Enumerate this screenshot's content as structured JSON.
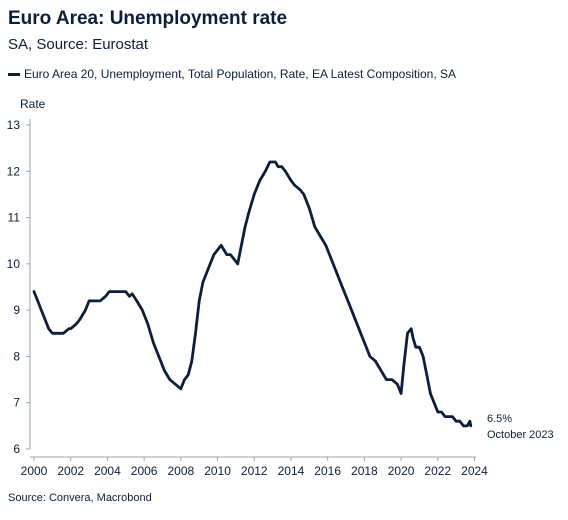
{
  "header": {
    "title": "Euro Area: Unemployment rate",
    "subtitle": "SA, Source: Eurostat"
  },
  "legend": {
    "label": "Euro Area 20, Unemployment, Total Population, Rate, EA Latest Composition, SA"
  },
  "footer": {
    "source": "Source: Convera, Macrobond"
  },
  "annotation": {
    "value": "6.5%",
    "date": "October 2023"
  },
  "chart_data": {
    "type": "line",
    "ylabel": "Rate",
    "xlabel": "",
    "ylim": [
      6,
      13
    ],
    "xlim": [
      2000,
      2024.3
    ],
    "yticks": [
      "6",
      "7",
      "8",
      "9",
      "10",
      "11",
      "12",
      "13"
    ],
    "xticks": [
      "2000",
      "2002",
      "2004",
      "2006",
      "2008",
      "2010",
      "2012",
      "2014",
      "2016",
      "2018",
      "2020",
      "2022",
      "2024"
    ],
    "line_color": "#0b1f3a",
    "series": [
      {
        "name": "Euro Area 20, Unemployment, Total Population, Rate, EA Latest Composition, SA",
        "x": [
          2000.0,
          2000.2,
          2000.4,
          2000.6,
          2000.8,
          2001.0,
          2001.3,
          2001.6,
          2001.9,
          2002.0,
          2002.3,
          2002.5,
          2002.8,
          2003.0,
          2003.3,
          2003.6,
          2003.9,
          2004.1,
          2004.4,
          2004.7,
          2005.0,
          2005.2,
          2005.35,
          2005.6,
          2005.9,
          2006.2,
          2006.5,
          2006.8,
          2007.1,
          2007.4,
          2007.7,
          2008.0,
          2008.2,
          2008.4,
          2008.6,
          2008.8,
          2009.0,
          2009.2,
          2009.4,
          2009.6,
          2009.8,
          2010.0,
          2010.2,
          2010.35,
          2010.5,
          2010.7,
          2010.9,
          2011.1,
          2011.3,
          2011.5,
          2011.7,
          2012.0,
          2012.3,
          2012.6,
          2012.85,
          2013.0,
          2013.15,
          2013.3,
          2013.5,
          2013.7,
          2014.0,
          2014.2,
          2014.5,
          2014.7,
          2015.0,
          2015.3,
          2015.6,
          2015.9,
          2016.2,
          2016.5,
          2016.8,
          2017.1,
          2017.4,
          2017.7,
          2018.0,
          2018.3,
          2018.6,
          2018.9,
          2019.2,
          2019.5,
          2019.8,
          2020.0,
          2020.15,
          2020.35,
          2020.55,
          2020.65,
          2020.8,
          2021.0,
          2021.2,
          2021.4,
          2021.6,
          2021.8,
          2022.0,
          2022.2,
          2022.4,
          2022.6,
          2022.8,
          2023.0,
          2023.2,
          2023.4,
          2023.6,
          2023.75,
          2023.8
        ],
        "values": [
          9.4,
          9.2,
          9.0,
          8.8,
          8.6,
          8.5,
          8.5,
          8.5,
          8.6,
          8.6,
          8.7,
          8.8,
          9.0,
          9.2,
          9.2,
          9.2,
          9.3,
          9.4,
          9.4,
          9.4,
          9.4,
          9.3,
          9.35,
          9.2,
          9.0,
          8.7,
          8.3,
          8.0,
          7.7,
          7.5,
          7.4,
          7.3,
          7.5,
          7.6,
          7.9,
          8.5,
          9.2,
          9.6,
          9.8,
          10.0,
          10.2,
          10.3,
          10.4,
          10.3,
          10.2,
          10.2,
          10.1,
          10.0,
          10.4,
          10.8,
          11.1,
          11.5,
          11.8,
          12.0,
          12.2,
          12.2,
          12.2,
          12.1,
          12.1,
          12.0,
          11.8,
          11.7,
          11.6,
          11.5,
          11.2,
          10.8,
          10.6,
          10.4,
          10.1,
          9.8,
          9.5,
          9.2,
          8.9,
          8.6,
          8.3,
          8.0,
          7.9,
          7.7,
          7.5,
          7.5,
          7.4,
          7.2,
          7.8,
          8.5,
          8.6,
          8.4,
          8.2,
          8.2,
          8.0,
          7.6,
          7.2,
          7.0,
          6.8,
          6.8,
          6.7,
          6.7,
          6.7,
          6.6,
          6.6,
          6.5,
          6.5,
          6.6,
          6.5
        ]
      }
    ]
  }
}
